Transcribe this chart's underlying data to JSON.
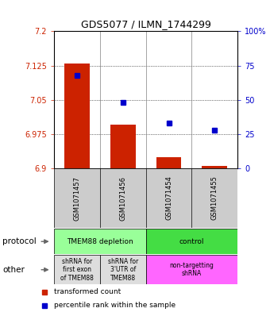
{
  "title": "GDS5077 / ILMN_1744299",
  "samples": [
    "GSM1071457",
    "GSM1071456",
    "GSM1071454",
    "GSM1071455"
  ],
  "red_values": [
    7.13,
    6.995,
    6.925,
    6.905
  ],
  "blue_values": [
    68,
    48,
    33,
    28
  ],
  "ylim": [
    6.9,
    7.2
  ],
  "y_ticks": [
    6.9,
    6.975,
    7.05,
    7.125,
    7.2
  ],
  "y_tick_labels": [
    "6.9",
    "6.975",
    "7.05",
    "7.125",
    "7.2"
  ],
  "y2_ticks": [
    0,
    25,
    50,
    75,
    100
  ],
  "y2_tick_labels": [
    "0",
    "25",
    "50",
    "75",
    "100%"
  ],
  "red_color": "#CC2200",
  "blue_color": "#0000CC",
  "green_light": "#99FF99",
  "green_bright": "#44DD44",
  "gray_sample": "#CCCCCC",
  "pink_other": "#FF66FF",
  "gray_other": "#DDDDDD",
  "legend_red": "transformed count",
  "legend_blue": "percentile rank within the sample",
  "proto_spans": [
    [
      0,
      2,
      "#99FF99",
      "TMEM88 depletion"
    ],
    [
      2,
      4,
      "#44DD44",
      "control"
    ]
  ],
  "other_spans": [
    [
      0,
      1,
      "#DDDDDD",
      "shRNA for\nfirst exon\nof TMEM88"
    ],
    [
      1,
      2,
      "#DDDDDD",
      "shRNA for\n3'UTR of\nTMEM88"
    ],
    [
      2,
      4,
      "#FF66FF",
      "non-targetting\nshRNA"
    ]
  ]
}
